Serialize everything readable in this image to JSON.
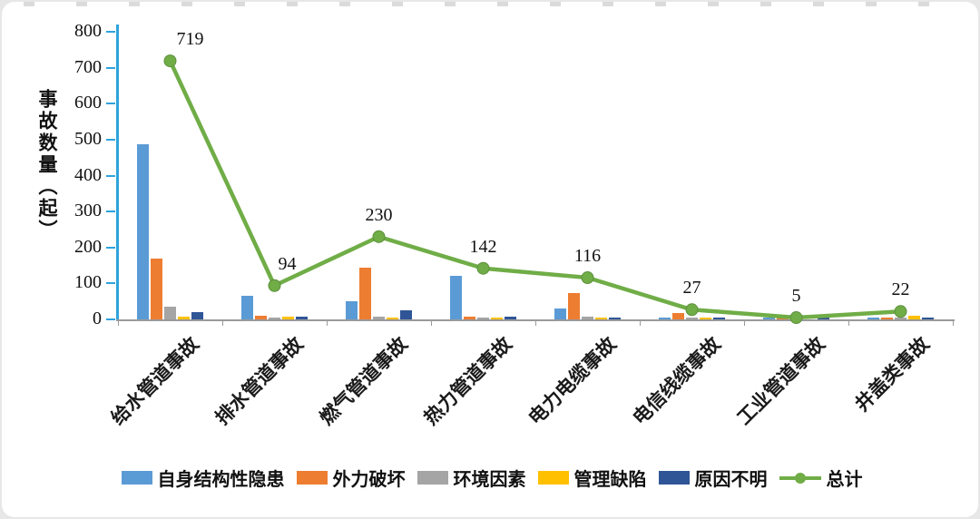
{
  "chart_data": {
    "type": "bar",
    "subtype": "grouped-bar-with-total-line",
    "title": "",
    "ylabel": "事故数量（起）",
    "ylim": [
      0,
      800
    ],
    "yticks": [
      0,
      100,
      200,
      300,
      400,
      500,
      600,
      700,
      800
    ],
    "grid": false,
    "legend_position": "bottom",
    "axis_color": "#2EA3DC",
    "categories": [
      "给水管道事故",
      "排水管道事故",
      "燃气管道事故",
      "热力管道事故",
      "电力电缆事故",
      "电信线缆事故",
      "工业管道事故",
      "井盖类事故"
    ],
    "series": [
      {
        "name": "自身结构性隐患",
        "color": "#5B9BD5",
        "values": [
          487,
          66,
          50,
          122,
          30,
          3,
          2,
          4
        ]
      },
      {
        "name": "外力破坏",
        "color": "#ED7D31",
        "values": [
          170,
          10,
          145,
          8,
          73,
          18,
          1,
          2
        ]
      },
      {
        "name": "环境因素",
        "color": "#A5A5A5",
        "values": [
          35,
          3,
          8,
          2,
          8,
          2,
          1,
          2
        ]
      },
      {
        "name": "管理缺陷",
        "color": "#FFC000",
        "values": [
          8,
          8,
          2,
          2,
          2,
          2,
          0,
          9
        ]
      },
      {
        "name": "原因不明",
        "color": "#2F5597",
        "values": [
          19,
          7,
          25,
          8,
          3,
          2,
          1,
          5
        ]
      }
    ],
    "line_series": {
      "name": "总计",
      "color": "#70AD47",
      "values": [
        719,
        94,
        230,
        142,
        116,
        27,
        5,
        22
      ]
    }
  }
}
